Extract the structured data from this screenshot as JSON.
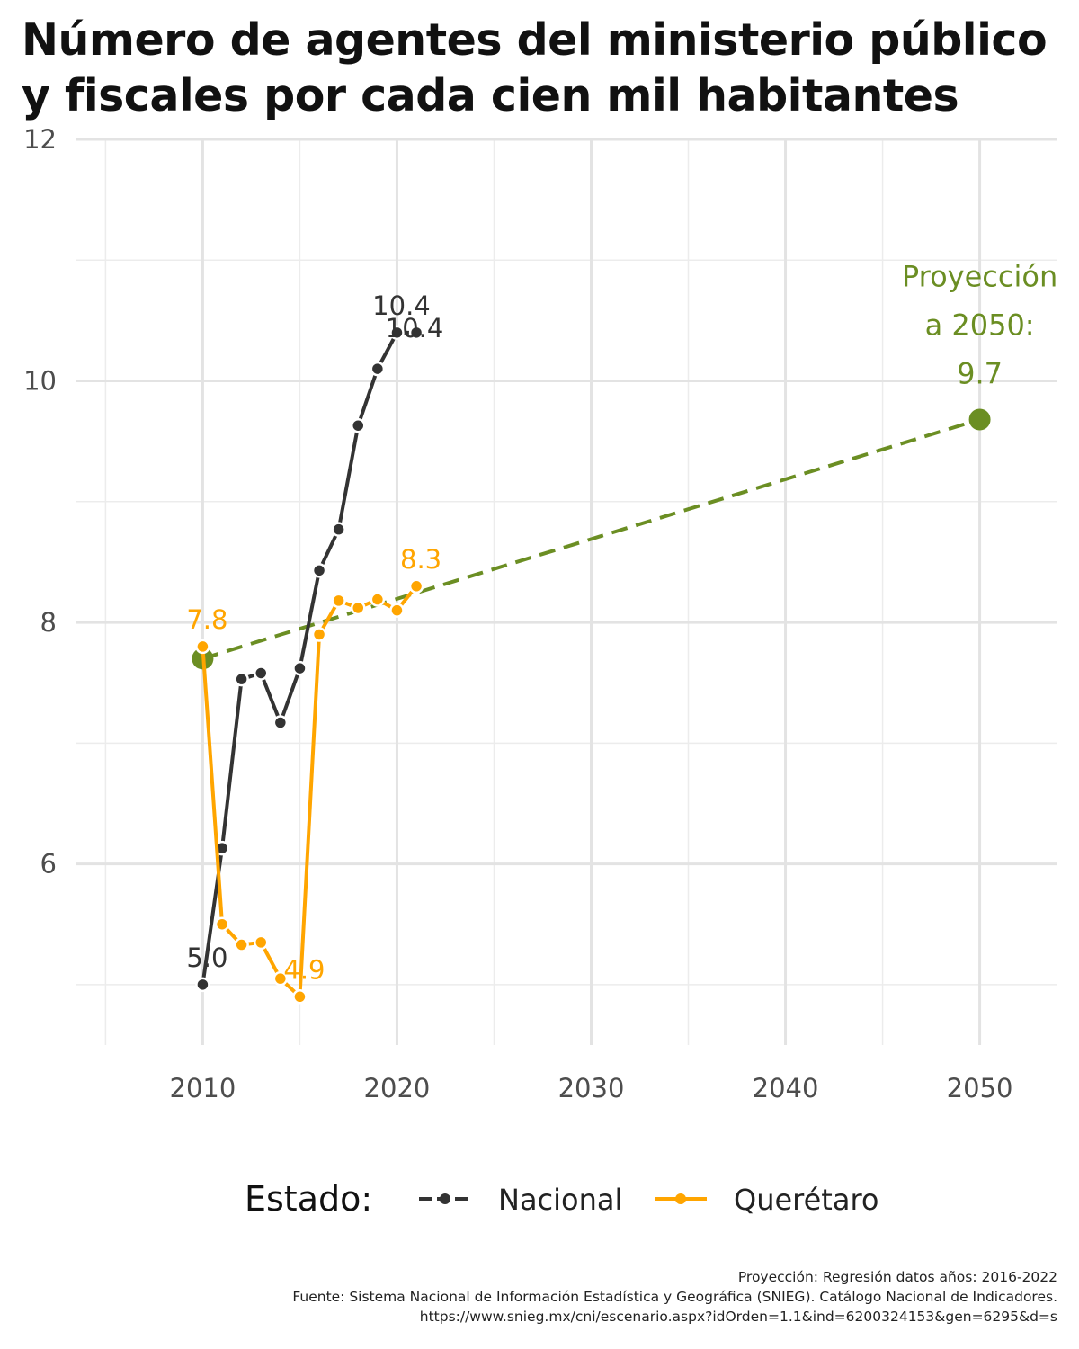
{
  "title_lines": [
    "Número de agentes del ministerio público",
    "y fiscales por cada cien mil habitantes"
  ],
  "legend": {
    "title": "Estado:"
  },
  "caption": {
    "line1": "Proyección: Regresión datos años: 2016-2022",
    "line2": "Fuente: Sistema Nacional de Información Estadística y Geográfica (SNIEG). Catálogo Nacional de Indicadores.",
    "line3": "https://www.snieg.mx/cni/escenario.aspx?idOrden=1.1&ind=6200324153&gen=6295&d=s"
  },
  "chart_data": {
    "type": "line",
    "title": "Número de agentes del ministerio público y fiscales por cada cien mil habitantes",
    "xlabel": "",
    "ylabel": "",
    "xlim": [
      2003.5,
      2054
    ],
    "ylim": [
      4.5,
      12
    ],
    "x_ticks": [
      2010,
      2020,
      2030,
      2040,
      2050
    ],
    "y_ticks": [
      6,
      8,
      10,
      12
    ],
    "grid": true,
    "legend_position": "bottom",
    "series": [
      {
        "name": "Nacional",
        "color": "#333333",
        "x": [
          2010,
          2011,
          2012,
          2013,
          2014,
          2015,
          2016,
          2017,
          2018,
          2019,
          2020,
          2021
        ],
        "y": [
          5.0,
          6.13,
          7.53,
          7.58,
          7.17,
          7.62,
          8.43,
          8.77,
          9.63,
          10.1,
          10.4,
          10.4
        ]
      },
      {
        "name": "Querétaro",
        "color": "#FFA500",
        "x": [
          2010,
          2011,
          2012,
          2013,
          2014,
          2015,
          2016,
          2017,
          2018,
          2019,
          2020,
          2021
        ],
        "y": [
          7.8,
          5.5,
          5.33,
          5.35,
          5.05,
          4.9,
          7.9,
          8.18,
          8.12,
          8.19,
          8.1,
          8.3
        ]
      }
    ],
    "projection": {
      "color": "#6B8E23",
      "x": [
        2010,
        2050
      ],
      "y": [
        7.7,
        9.68
      ]
    },
    "annotations": [
      {
        "text": "5.0",
        "x": 2010,
        "y": 5.0,
        "series": "Nacional",
        "pos": "above"
      },
      {
        "text": "10.4",
        "x": 2020,
        "y": 10.4,
        "series": "Nacional",
        "pos": "above"
      },
      {
        "text": "10.4",
        "x": 2021,
        "y": 10.4,
        "series": "Nacional",
        "pos": "below"
      },
      {
        "text": "7.8",
        "x": 2010,
        "y": 7.8,
        "series": "Querétaro",
        "pos": "above"
      },
      {
        "text": "4.9",
        "x": 2015,
        "y": 4.9,
        "series": "Querétaro",
        "pos": "above"
      },
      {
        "text": "8.3",
        "x": 2021,
        "y": 8.3,
        "series": "Querétaro",
        "pos": "above"
      },
      {
        "lines": [
          "Proyección",
          "a 2050:",
          "9.7"
        ],
        "x": 2050,
        "y": 9.68,
        "series": "projection"
      }
    ]
  }
}
